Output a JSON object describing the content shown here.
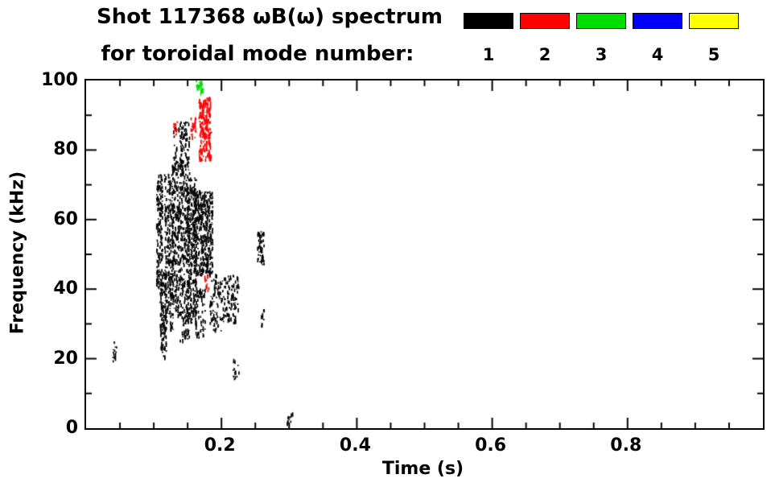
{
  "title": {
    "line1": "Shot 117368 ωB(ω) spectrum",
    "line2": "for toroidal mode number:"
  },
  "legend": {
    "items": [
      {
        "label": "1",
        "color": "#000000"
      },
      {
        "label": "2",
        "color": "#ff0000"
      },
      {
        "label": "3",
        "color": "#00dd00"
      },
      {
        "label": "4",
        "color": "#0000ff"
      },
      {
        "label": "5",
        "color": "#ffff00"
      }
    ]
  },
  "axes": {
    "x": {
      "label": "Time (s)",
      "range": [
        0,
        1
      ],
      "ticks": [
        {
          "value": 0.2,
          "label": "0.2"
        },
        {
          "value": 0.4,
          "label": "0.4"
        },
        {
          "value": 0.6,
          "label": "0.6"
        },
        {
          "value": 0.8,
          "label": "0.8"
        }
      ],
      "minor_step": 0.05
    },
    "y": {
      "label": "Frequency (kHz)",
      "range": [
        0,
        100
      ],
      "ticks": [
        {
          "value": 0,
          "label": "0"
        },
        {
          "value": 20,
          "label": "20"
        },
        {
          "value": 40,
          "label": "40"
        },
        {
          "value": 60,
          "label": "60"
        },
        {
          "value": 80,
          "label": "80"
        },
        {
          "value": 100,
          "label": "100"
        }
      ],
      "minor_step": 10
    }
  },
  "chart_data": {
    "type": "scatter",
    "title": "Shot 117368 ωB(ω) spectrum for toroidal mode number",
    "xlabel": "Time (s)",
    "ylabel": "Frequency (kHz)",
    "xlim": [
      0,
      1
    ],
    "ylim": [
      0,
      100
    ],
    "grid": false,
    "legend_position": "top-right",
    "series": [
      {
        "name": "n=1",
        "color": "#000000",
        "clusters": [
          {
            "t": [
              0.103,
              0.112
            ],
            "f": [
              40,
              73
            ],
            "n": 160
          },
          {
            "t": [
              0.108,
              0.118
            ],
            "f": [
              20,
              45
            ],
            "n": 120
          },
          {
            "t": [
              0.115,
              0.128
            ],
            "f": [
              28,
              73
            ],
            "n": 240
          },
          {
            "t": [
              0.126,
              0.138
            ],
            "f": [
              32,
              76
            ],
            "n": 220
          },
          {
            "t": [
              0.128,
              0.142
            ],
            "f": [
              74,
              87
            ],
            "n": 40
          },
          {
            "t": [
              0.138,
              0.152
            ],
            "f": [
              25,
              88
            ],
            "n": 330
          },
          {
            "t": [
              0.148,
              0.162
            ],
            "f": [
              30,
              72
            ],
            "n": 280
          },
          {
            "t": [
              0.158,
              0.186
            ],
            "f": [
              44,
              68
            ],
            "n": 420
          },
          {
            "t": [
              0.16,
              0.175
            ],
            "f": [
              26,
              40
            ],
            "n": 70
          },
          {
            "t": [
              0.182,
              0.2
            ],
            "f": [
              28,
              44
            ],
            "n": 80
          },
          {
            "t": [
              0.2,
              0.225
            ],
            "f": [
              30,
              44
            ],
            "n": 90
          },
          {
            "t": [
              0.215,
              0.225
            ],
            "f": [
              14,
              20
            ],
            "n": 14
          },
          {
            "t": [
              0.252,
              0.262
            ],
            "f": [
              47,
              57
            ],
            "n": 50
          },
          {
            "t": [
              0.258,
              0.263
            ],
            "f": [
              29,
              34
            ],
            "n": 10
          },
          {
            "t": [
              0.038,
              0.044
            ],
            "f": [
              19,
              26
            ],
            "n": 14
          },
          {
            "t": [
              0.295,
              0.305
            ],
            "f": [
              1,
              4
            ],
            "n": 10
          }
        ]
      },
      {
        "name": "n=2",
        "color": "#ff0000",
        "clusters": [
          {
            "t": [
              0.166,
              0.184
            ],
            "f": [
              77,
              95
            ],
            "n": 230
          },
          {
            "t": [
              0.154,
              0.162
            ],
            "f": [
              83,
              89
            ],
            "n": 28
          },
          {
            "t": [
              0.128,
              0.136
            ],
            "f": [
              84,
              88
            ],
            "n": 12
          },
          {
            "t": [
              0.174,
              0.181
            ],
            "f": [
              39,
              44
            ],
            "n": 12
          }
        ]
      },
      {
        "name": "n=3",
        "color": "#00dd00",
        "clusters": [
          {
            "t": [
              0.162,
              0.172
            ],
            "f": [
              96,
              100
            ],
            "n": 30
          }
        ]
      },
      {
        "name": "n=4",
        "color": "#0000ff",
        "clusters": []
      },
      {
        "name": "n=5",
        "color": "#ffff00",
        "clusters": []
      }
    ]
  }
}
